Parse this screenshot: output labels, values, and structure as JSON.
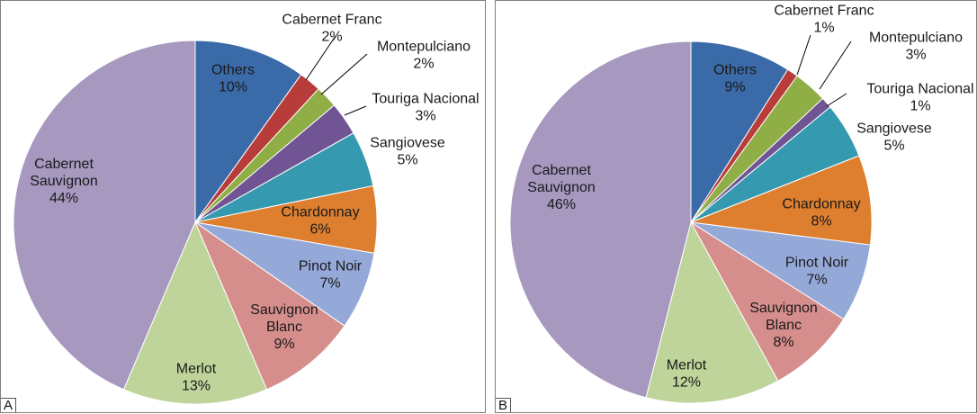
{
  "chart_data": [
    {
      "type": "pie",
      "panel_label": "A",
      "start_angle": "12 o'clock, clockwise",
      "slices": [
        {
          "label": [
            "Others"
          ],
          "value": 10,
          "color": "#3A6BA8"
        },
        {
          "label": [
            "Cabernet Franc"
          ],
          "value": 2,
          "color": "#B83C3A"
        },
        {
          "label": [
            "Montepulciano"
          ],
          "value": 2,
          "color": "#8FAE45"
        },
        {
          "label": [
            "Touriga Nacional"
          ],
          "value": 3,
          "color": "#715493"
        },
        {
          "label": [
            "Sangiovese"
          ],
          "value": 5,
          "color": "#3599AF"
        },
        {
          "label": [
            "Chardonnay"
          ],
          "value": 6,
          "color": "#DE7F2F"
        },
        {
          "label": [
            "Pinot Noir"
          ],
          "value": 7,
          "color": "#94A9D8"
        },
        {
          "label": [
            "Sauvignon",
            "Blanc"
          ],
          "value": 9,
          "color": "#D58E8B"
        },
        {
          "label": [
            "Merlot"
          ],
          "value": 13,
          "color": "#BFD49A"
        },
        {
          "label": [
            "Cabernet",
            "Sauvignon"
          ],
          "value": 44,
          "color": "#A698BF"
        }
      ]
    },
    {
      "type": "pie",
      "panel_label": "B",
      "start_angle": "12 o'clock, clockwise",
      "slices": [
        {
          "label": [
            "Others"
          ],
          "value": 9,
          "color": "#3A6BA8"
        },
        {
          "label": [
            "Cabernet Franc"
          ],
          "value": 1,
          "color": "#B83C3A"
        },
        {
          "label": [
            "Montepulciano"
          ],
          "value": 3,
          "color": "#8FAE45"
        },
        {
          "label": [
            "Touriga Nacional"
          ],
          "value": 1,
          "color": "#715493"
        },
        {
          "label": [
            "Sangiovese"
          ],
          "value": 5,
          "color": "#3599AF"
        },
        {
          "label": [
            "Chardonnay"
          ],
          "value": 8,
          "color": "#DE7F2F"
        },
        {
          "label": [
            "Pinot Noir"
          ],
          "value": 7,
          "color": "#94A9D8"
        },
        {
          "label": [
            "Sauvignon",
            "Blanc"
          ],
          "value": 8,
          "color": "#D58E8B"
        },
        {
          "label": [
            "Merlot"
          ],
          "value": 12,
          "color": "#BFD49A"
        },
        {
          "label": [
            "Cabernet",
            "Sauvignon"
          ],
          "value": 46,
          "color": "#A698BF"
        }
      ]
    }
  ]
}
